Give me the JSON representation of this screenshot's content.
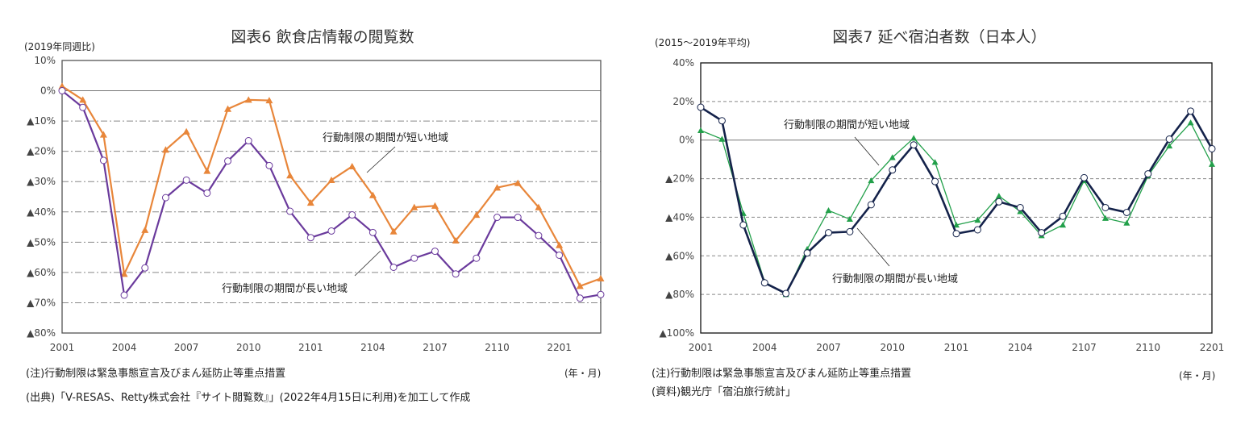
{
  "chart_data": [
    {
      "type": "line",
      "title": "図表6 飲食店情報の閲覧数",
      "unit_label": "(2019年同週比)",
      "x_unit": "(年・月)",
      "x": [
        "2001",
        "2002",
        "2003",
        "2004",
        "2005",
        "2006",
        "2007",
        "2008",
        "2009",
        "2010",
        "2011",
        "2012",
        "2101",
        "2102",
        "2103",
        "2104",
        "2105",
        "2106",
        "2107",
        "2108",
        "2109",
        "2110",
        "2111",
        "2112",
        "2201",
        "2202",
        "2203"
      ],
      "x_ticks": [
        "2001",
        "2004",
        "2007",
        "2010",
        "2101",
        "2104",
        "2107",
        "2110",
        "2201"
      ],
      "ylim": [
        -80,
        10
      ],
      "y_ticks": [
        {
          "v": 10,
          "label": "10%"
        },
        {
          "v": 0,
          "label": "0%"
        },
        {
          "v": -10,
          "label": "▲10%"
        },
        {
          "v": -20,
          "label": "▲20%"
        },
        {
          "v": -30,
          "label": "▲30%"
        },
        {
          "v": -40,
          "label": "▲40%"
        },
        {
          "v": -50,
          "label": "▲50%"
        },
        {
          "v": -60,
          "label": "▲60%"
        },
        {
          "v": -70,
          "label": "▲70%"
        },
        {
          "v": -80,
          "label": "▲80%"
        }
      ],
      "grid": true,
      "series": [
        {
          "name": "行動制限の期間が短い地域",
          "color": "#e8863a",
          "marker": "triangle",
          "values": [
            1.5,
            -3,
            -14.5,
            -60.5,
            -46,
            -19.5,
            -13.5,
            -26.5,
            -6,
            -3,
            -3.2,
            -28,
            -37,
            -29.5,
            -25,
            -34.5,
            -46.5,
            -38.5,
            -38,
            -49.5,
            -41,
            -32,
            -30.5,
            -38.5,
            -51,
            -64.5,
            -62
          ]
        },
        {
          "name": "行動制限の期間が長い地域",
          "color": "#6a3a9c",
          "marker": "circle",
          "values": [
            0,
            -5.5,
            -23,
            -67.5,
            -58.5,
            -35.3,
            -29.5,
            -33.8,
            -23.2,
            -16.5,
            -24.7,
            -39.8,
            -48.5,
            -46.3,
            -41,
            -46.8,
            -58.3,
            -55.3,
            -53,
            -60.5,
            -55.3,
            -41.8,
            -41.8,
            -47.8,
            -54.3,
            -68.5,
            -67.3
          ]
        }
      ],
      "notes": [
        "(注)行動制限は緊急事態宣言及びまん延防止等重点措置",
        "(出典)「V-RESAS、Retty株式会社『サイト閲覧数』」(2022年4月15日に利用)を加工して作成"
      ]
    },
    {
      "type": "line",
      "title": "図表7 延べ宿泊者数（日本人）",
      "unit_label": "(2015～2019年平均)",
      "x_unit": "(年・月)",
      "x": [
        "2001",
        "2002",
        "2003",
        "2004",
        "2005",
        "2006",
        "2007",
        "2008",
        "2009",
        "2010",
        "2011",
        "2012",
        "2101",
        "2102",
        "2103",
        "2104",
        "2105",
        "2106",
        "2107",
        "2108",
        "2109",
        "2110",
        "2111",
        "2112",
        "2201"
      ],
      "x_ticks": [
        "2001",
        "2004",
        "2007",
        "2010",
        "2101",
        "2104",
        "2107",
        "2110",
        "2201"
      ],
      "ylim": [
        -100,
        40
      ],
      "y_ticks": [
        {
          "v": 40,
          "label": "40%"
        },
        {
          "v": 20,
          "label": "20%"
        },
        {
          "v": 0,
          "label": "0%"
        },
        {
          "v": -20,
          "label": "▲20%"
        },
        {
          "v": -40,
          "label": "▲40%"
        },
        {
          "v": -60,
          "label": "▲60%"
        },
        {
          "v": -80,
          "label": "▲80%"
        },
        {
          "v": -100,
          "label": "▲100%"
        }
      ],
      "grid": true,
      "series": [
        {
          "name": "行動制限の期間が短い地域",
          "color": "#22a04a",
          "marker": "triangle",
          "values": [
            5,
            0.5,
            -38,
            -73.5,
            -80,
            -56.5,
            -36.5,
            -41,
            -21,
            -9,
            1,
            -11.5,
            -44,
            -41.5,
            -29,
            -37,
            -49.5,
            -44,
            -21,
            -40.5,
            -43,
            -18.5,
            -3,
            9,
            -12.5
          ]
        },
        {
          "name": "行動制限の期間が長い地域",
          "color": "#14224a",
          "marker": "circle",
          "values": [
            17,
            10,
            -44,
            -74,
            -79.5,
            -58.5,
            -48,
            -47.5,
            -33.5,
            -15.5,
            -2.5,
            -21.5,
            -48.5,
            -46.5,
            -32,
            -35,
            -48,
            -39.5,
            -19.5,
            -35,
            -37.5,
            -17.5,
            0.5,
            15,
            -4.5
          ]
        }
      ],
      "notes": [
        "(注)行動制限は緊急事態宣言及びまん延防止等重点措置",
        "(資料)観光庁「宿泊旅行統計」"
      ]
    }
  ]
}
